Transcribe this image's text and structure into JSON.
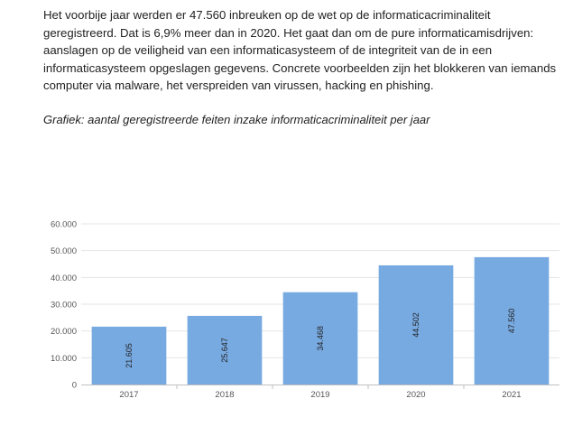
{
  "article": {
    "paragraph": "Het voorbije jaar werden er 47.560 inbreuken op de wet op de informaticacriminaliteit geregistreerd. Dat is 6,9% meer dan in 2020. Het gaat dan om de pure informaticamisdrijven: aanslagen op de veiligheid van een informaticasysteem of de integriteit van de in een informaticasysteem opgeslagen gegevens. Concrete voorbeelden zijn het blokkeren van iemands computer via malware, het verspreiden van virussen, hacking en phishing.",
    "caption": "Grafiek: aantal geregistreerde feiten inzake informaticacriminaliteit per jaar"
  },
  "chart_data": {
    "type": "bar",
    "title": "",
    "xlabel": "",
    "ylabel": "",
    "categories": [
      "2017",
      "2018",
      "2019",
      "2020",
      "2021"
    ],
    "values": [
      21605,
      25647,
      34468,
      44502,
      47560
    ],
    "data_labels": [
      "21.605",
      "25.647",
      "34.468",
      "44.502",
      "47.560"
    ],
    "ylim": [
      0,
      60000
    ],
    "yticks": [
      0,
      10000,
      20000,
      30000,
      40000,
      50000,
      60000
    ],
    "ytick_labels": [
      "0",
      "10.000",
      "20.000",
      "30.000",
      "40.000",
      "50.000",
      "60.000"
    ],
    "grid": true,
    "legend": "none",
    "bar_color": "#78aae2",
    "grid_color": "#e6e6e6"
  }
}
